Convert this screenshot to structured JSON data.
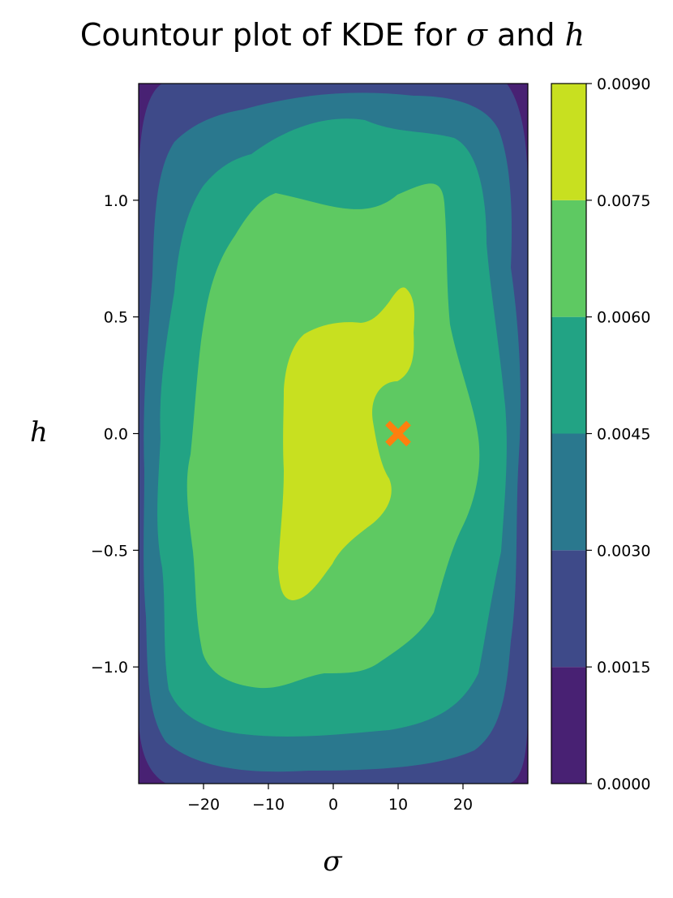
{
  "chart_data": {
    "type": "contour",
    "title": "Countour plot of KDE for σ and h",
    "title_prefix": "Countour plot of KDE for ",
    "title_sym1": "σ",
    "title_mid": " and ",
    "title_sym2": "h",
    "xlabel": "σ",
    "ylabel": "h",
    "xlim": [
      -30,
      30
    ],
    "ylim": [
      -1.5,
      1.5
    ],
    "xticks": [
      -20,
      -10,
      0,
      10,
      20
    ],
    "xtick_labels": [
      "−20",
      "−10",
      "0",
      "10",
      "20"
    ],
    "yticks": [
      1.0,
      0.5,
      0.0,
      -0.5,
      -1.0
    ],
    "ytick_labels": [
      "1.0",
      "0.5",
      "0.0",
      "−0.5",
      "−1.0"
    ],
    "colorbar": {
      "levels": [
        0.0,
        0.0015,
        0.003,
        0.0045,
        0.006,
        0.0075,
        0.009
      ],
      "tick_labels": [
        "0.0000",
        "0.0015",
        "0.0030",
        "0.0045",
        "0.0060",
        "0.0075",
        "0.0090"
      ],
      "colors": [
        "#482173",
        "#3e4a89",
        "#2a788e",
        "#22a384",
        "#5ec962",
        "#c8e020"
      ]
    },
    "marker": {
      "x": 10,
      "y": 0.0,
      "symbol": "X",
      "color": "#ff7f0e"
    },
    "regions": [
      {
        "level_band": "0.0000-0.0015",
        "color": "#482173"
      },
      {
        "level_band": "0.0015-0.0030",
        "color": "#3e4a89"
      },
      {
        "level_band": "0.0030-0.0045",
        "color": "#2a788e"
      },
      {
        "level_band": "0.0045-0.0060",
        "color": "#22a384"
      },
      {
        "level_band": "0.0060-0.0075",
        "color": "#5ec962"
      },
      {
        "level_band": "0.0075-0.0090",
        "color": "#c8e020"
      }
    ]
  }
}
